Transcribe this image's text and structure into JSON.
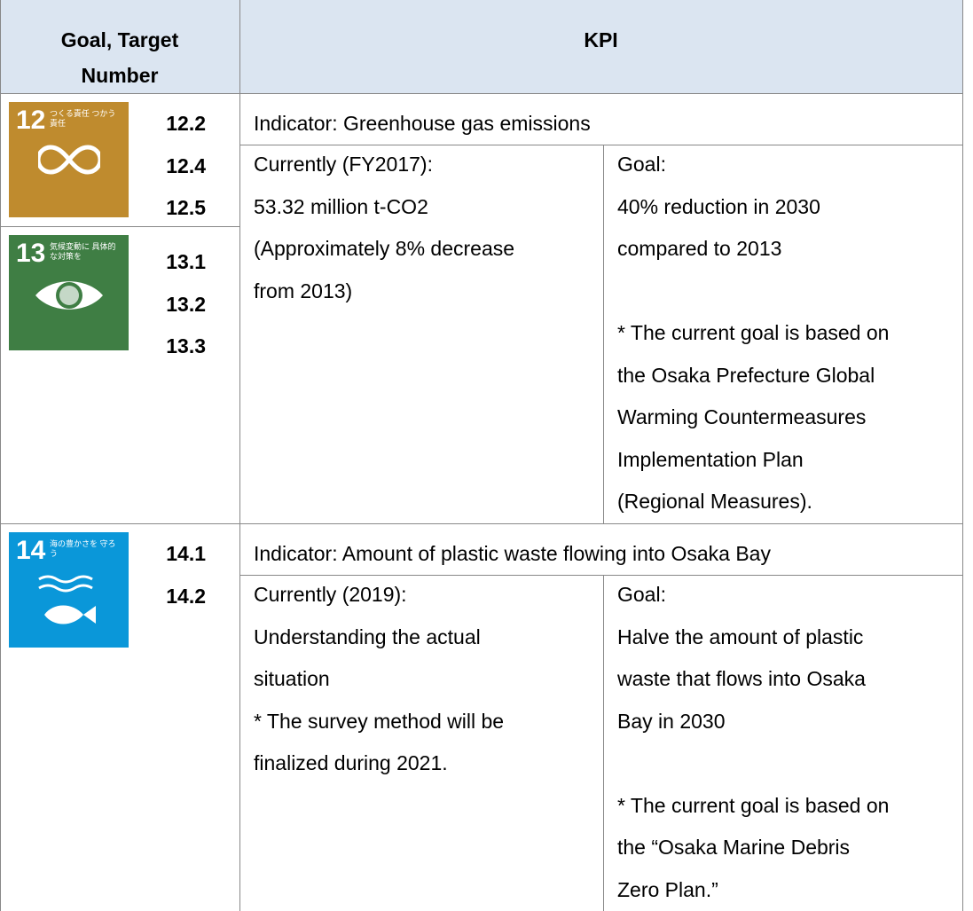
{
  "table": {
    "header": {
      "goal_lines": [
        "Goal, Target",
        "Number"
      ],
      "kpi": "KPI"
    },
    "rows": [
      {
        "goals": [
          {
            "number": "12",
            "label": "つくる責任 つかう責任",
            "color": "#bf8b2e",
            "symbol": "infinity",
            "targets": [
              "12.2",
              "12.4",
              "12.5"
            ]
          },
          {
            "number": "13",
            "label": "気候変動に 具体的な対策を",
            "color": "#3f7e44",
            "symbol": "eye",
            "targets": [
              "13.1",
              "13.2",
              "13.3"
            ]
          }
        ],
        "indicator": "Indicator: Greenhouse gas emissions",
        "current": [
          [
            "Currently (FY2017):",
            "53.32 million t-CO2",
            "(Approximately 8% decrease",
            "from 2013)"
          ]
        ],
        "goal": [
          [
            "Goal:",
            "40% reduction in 2030",
            "compared to 2013"
          ],
          [
            "* The current goal is based on",
            "the Osaka Prefecture Global",
            "Warming Countermeasures",
            "Implementation Plan",
            "(Regional Measures)."
          ]
        ]
      },
      {
        "goals": [
          {
            "number": "14",
            "label": "海の豊かさを 守ろう",
            "color": "#0a97d9",
            "symbol": "fish",
            "targets": [
              "14.1",
              "14.2"
            ]
          }
        ],
        "indicator": "Indicator: Amount of plastic waste flowing into Osaka Bay",
        "current": [
          [
            "Currently (2019):",
            "Understanding the actual",
            "situation",
            "* The survey method will be",
            "finalized during 2021."
          ]
        ],
        "goal": [
          [
            "Goal:",
            "Halve the amount of plastic",
            "waste that flows into Osaka",
            "Bay in 2030"
          ],
          [
            "* The current goal is based on",
            "the “Osaka Marine Debris",
            "Zero Plan.”"
          ]
        ]
      }
    ]
  }
}
